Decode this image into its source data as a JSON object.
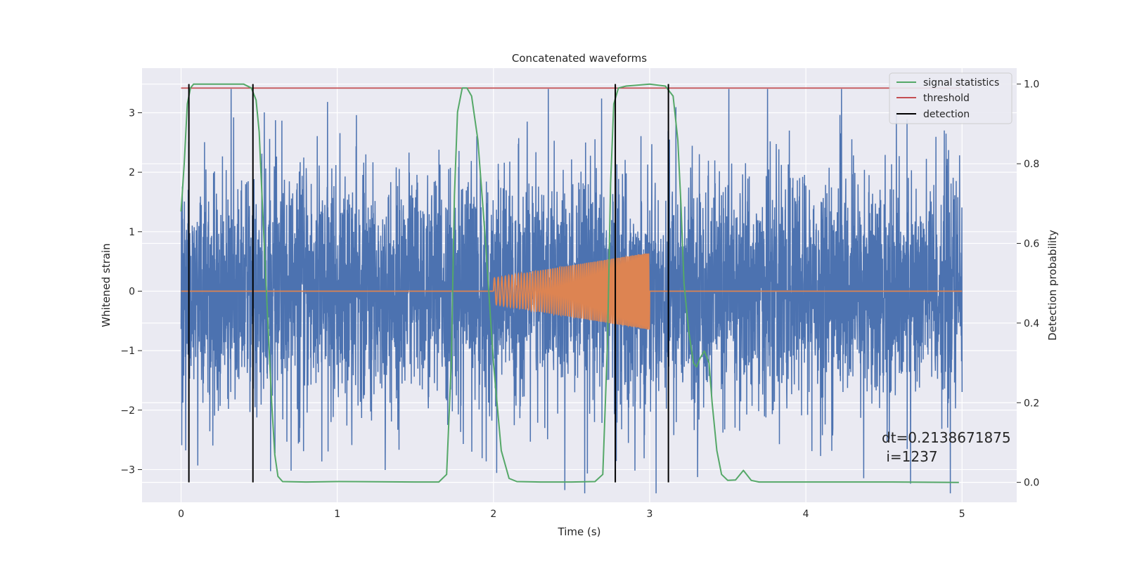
{
  "chart_data": {
    "type": "line",
    "title": "Concatenated waveforms",
    "xlabel": "Time (s)",
    "ylabel": "Whitened strain",
    "y2label": "Detection probability",
    "xlim": [
      -0.25,
      5.35
    ],
    "ylim": [
      -3.55,
      3.75
    ],
    "y2lim": [
      -0.05,
      1.04
    ],
    "xticks": [
      0,
      1,
      2,
      3,
      4,
      5
    ],
    "yticks": [
      -3,
      -2,
      -1,
      0,
      1,
      2,
      3
    ],
    "y2ticks": [
      0.0,
      0.2,
      0.4,
      0.6,
      0.8,
      1.0
    ],
    "xtick_labels": [
      "0",
      "1",
      "2",
      "3",
      "4",
      "5"
    ],
    "ytick_labels": [
      "−3",
      "−2",
      "−1",
      "0",
      "1",
      "2",
      "3"
    ],
    "y2tick_labels": [
      "0.0",
      "0.2",
      "0.4",
      "0.6",
      "0.8",
      "1.0"
    ],
    "grid": true,
    "legend": {
      "position": "top-right",
      "entries": [
        {
          "label": "signal statistics",
          "color": "#55a868"
        },
        {
          "label": "threshold",
          "color": "#c44e52"
        },
        {
          "label": "detection",
          "color": "#000000"
        }
      ]
    },
    "colors": {
      "strain": "#4c72b0",
      "injected": "#dd8452",
      "signal_statistics": "#55a868",
      "threshold": "#c44e52",
      "detection": "#000000",
      "background": "#eaeaf2",
      "grid": "#ffffff"
    },
    "strain": {
      "t_range": [
        0,
        5
      ],
      "typical_amplitude": 1.5,
      "peak_amplitude": 3.4
    },
    "injected": {
      "t_start": 2.0,
      "t_end": 3.0,
      "amplitude_start": 0.22,
      "amplitude_end": 0.65
    },
    "signal_statistics": {
      "t": [
        0.0,
        0.02,
        0.04,
        0.06,
        0.08,
        0.1,
        0.2,
        0.3,
        0.4,
        0.45,
        0.48,
        0.5,
        0.52,
        0.55,
        0.58,
        0.6,
        0.62,
        0.65,
        0.8,
        1.0,
        1.5,
        1.65,
        1.7,
        1.73,
        1.75,
        1.77,
        1.8,
        1.83,
        1.86,
        1.9,
        1.95,
        2.0,
        2.05,
        2.1,
        2.15,
        2.3,
        2.5,
        2.65,
        2.7,
        2.73,
        2.75,
        2.77,
        2.8,
        2.85,
        3.0,
        3.1,
        3.15,
        3.18,
        3.2,
        3.22,
        3.25,
        3.28,
        3.3,
        3.32,
        3.35,
        3.38,
        3.4,
        3.43,
        3.46,
        3.5,
        3.55,
        3.6,
        3.65,
        3.7,
        3.8,
        4.0,
        4.5,
        5.0
      ],
      "p": [
        0.68,
        0.8,
        0.95,
        0.99,
        1.0,
        1.0,
        1.0,
        1.0,
        1.0,
        0.99,
        0.96,
        0.88,
        0.7,
        0.45,
        0.2,
        0.07,
        0.015,
        0.002,
        0.001,
        0.002,
        0.001,
        0.001,
        0.02,
        0.3,
        0.72,
        0.93,
        0.99,
        0.99,
        0.97,
        0.86,
        0.6,
        0.3,
        0.08,
        0.01,
        0.002,
        0.001,
        0.001,
        0.002,
        0.02,
        0.35,
        0.75,
        0.95,
        0.99,
        0.995,
        1.0,
        0.995,
        0.97,
        0.86,
        0.7,
        0.5,
        0.38,
        0.3,
        0.29,
        0.31,
        0.33,
        0.3,
        0.2,
        0.08,
        0.02,
        0.005,
        0.006,
        0.03,
        0.005,
        0.001,
        0.001,
        0.001,
        0.001,
        0.0
      ],
      "t_end": 4.98
    },
    "threshold": {
      "value": 0.99,
      "t_range": [
        0,
        5
      ]
    },
    "detections": [
      0.05,
      0.46,
      2.78,
      3.12
    ],
    "annotations": [
      {
        "text": "dt=0.2138671875",
        "x": 4.5,
        "y": -2.5
      },
      {
        "text": " i=1237",
        "x": 4.5,
        "y": -2.83
      }
    ]
  }
}
